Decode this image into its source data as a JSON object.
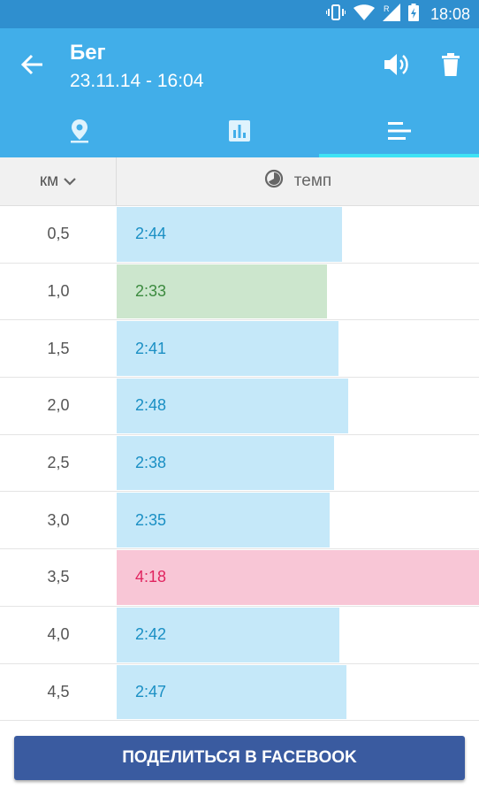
{
  "status_bar": {
    "time": "18:08"
  },
  "header": {
    "title": "Бег",
    "subtitle": "23.11.14 - 16:04"
  },
  "tabs": [
    {
      "icon": "map-pin-icon",
      "active": false
    },
    {
      "icon": "bar-chart-icon",
      "active": false
    },
    {
      "icon": "splits-list-icon",
      "active": true
    }
  ],
  "table": {
    "column_km": "км",
    "column_pace": "темп",
    "rows": [
      {
        "km": "0,5",
        "pace": "2:44",
        "kind": "normal"
      },
      {
        "km": "1,0",
        "pace": "2:33",
        "kind": "fastest"
      },
      {
        "km": "1,5",
        "pace": "2:41",
        "kind": "normal"
      },
      {
        "km": "2,0",
        "pace": "2:48",
        "kind": "normal"
      },
      {
        "km": "2,5",
        "pace": "2:38",
        "kind": "normal"
      },
      {
        "km": "3,0",
        "pace": "2:35",
        "kind": "normal"
      },
      {
        "km": "3,5",
        "pace": "4:18",
        "kind": "slowest"
      },
      {
        "km": "4,0",
        "pace": "2:42",
        "kind": "normal"
      },
      {
        "km": "4,5",
        "pace": "2:47",
        "kind": "normal"
      }
    ]
  },
  "colors": {
    "normal_bar": "#c5e8f9",
    "normal_text": "#1a8fc4",
    "fastest_bar": "#cce6cd",
    "fastest_text": "#3b8a3e",
    "slowest_bar": "#f8c6d6",
    "slowest_text": "#e0245f"
  },
  "share_button": {
    "label": "ПОДЕЛИТЬСЯ В FACEBOOK"
  }
}
